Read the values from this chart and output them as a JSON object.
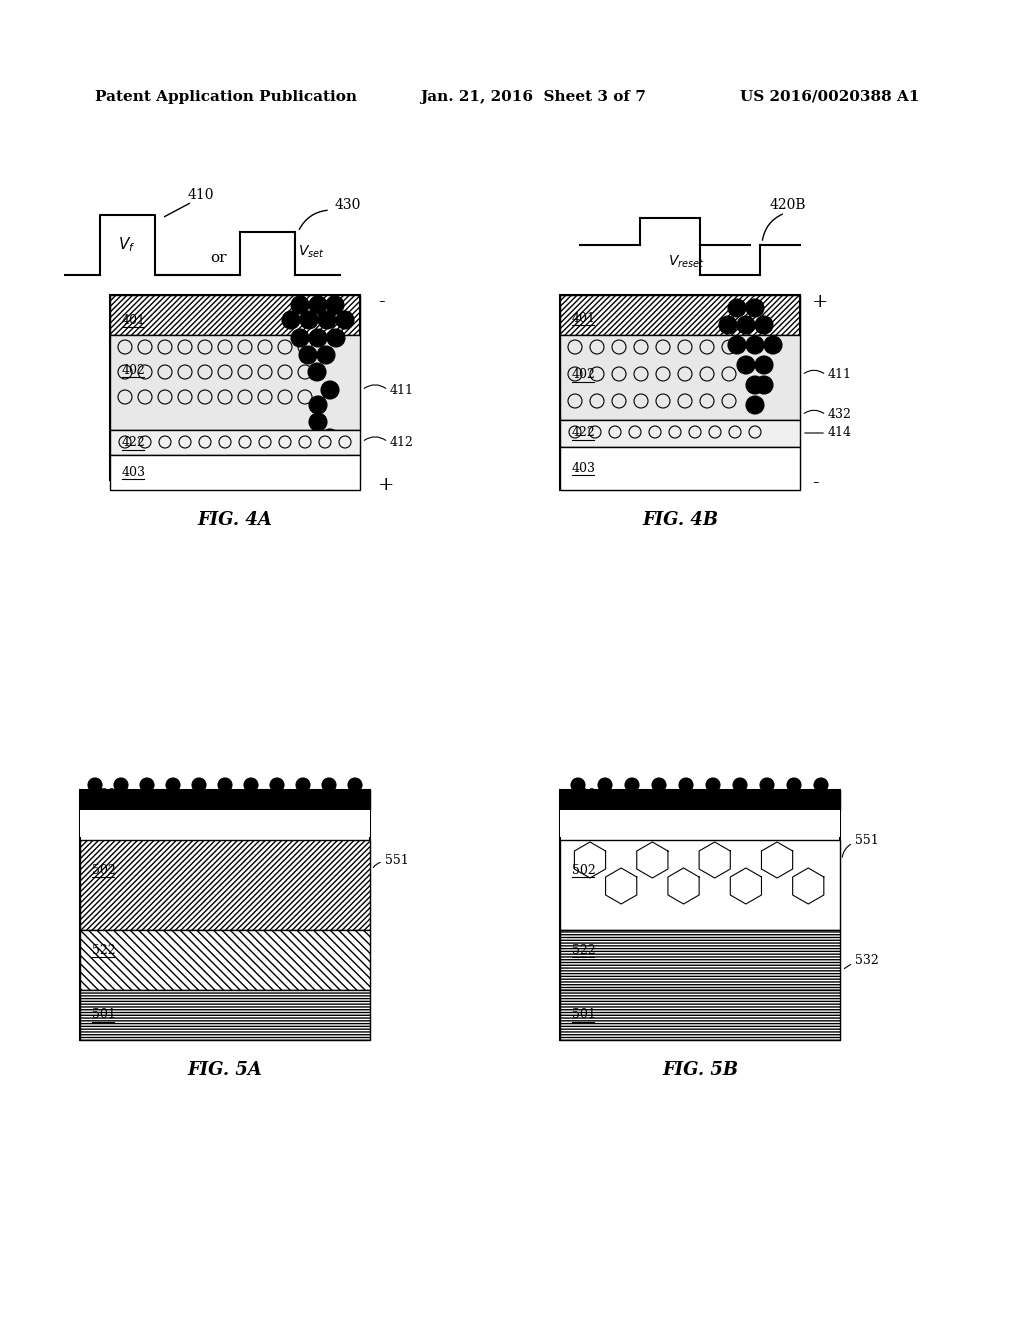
{
  "bg_color": "#ffffff",
  "header_left": "Patent Application Publication",
  "header_mid": "Jan. 21, 2016  Sheet 3 of 7",
  "header_right": "US 2016/0020388 A1",
  "fig4a_label": "FIG. 4A",
  "fig4b_label": "FIG. 4B",
  "fig5a_label": "FIG. 5A",
  "fig5b_label": "FIG. 5B"
}
